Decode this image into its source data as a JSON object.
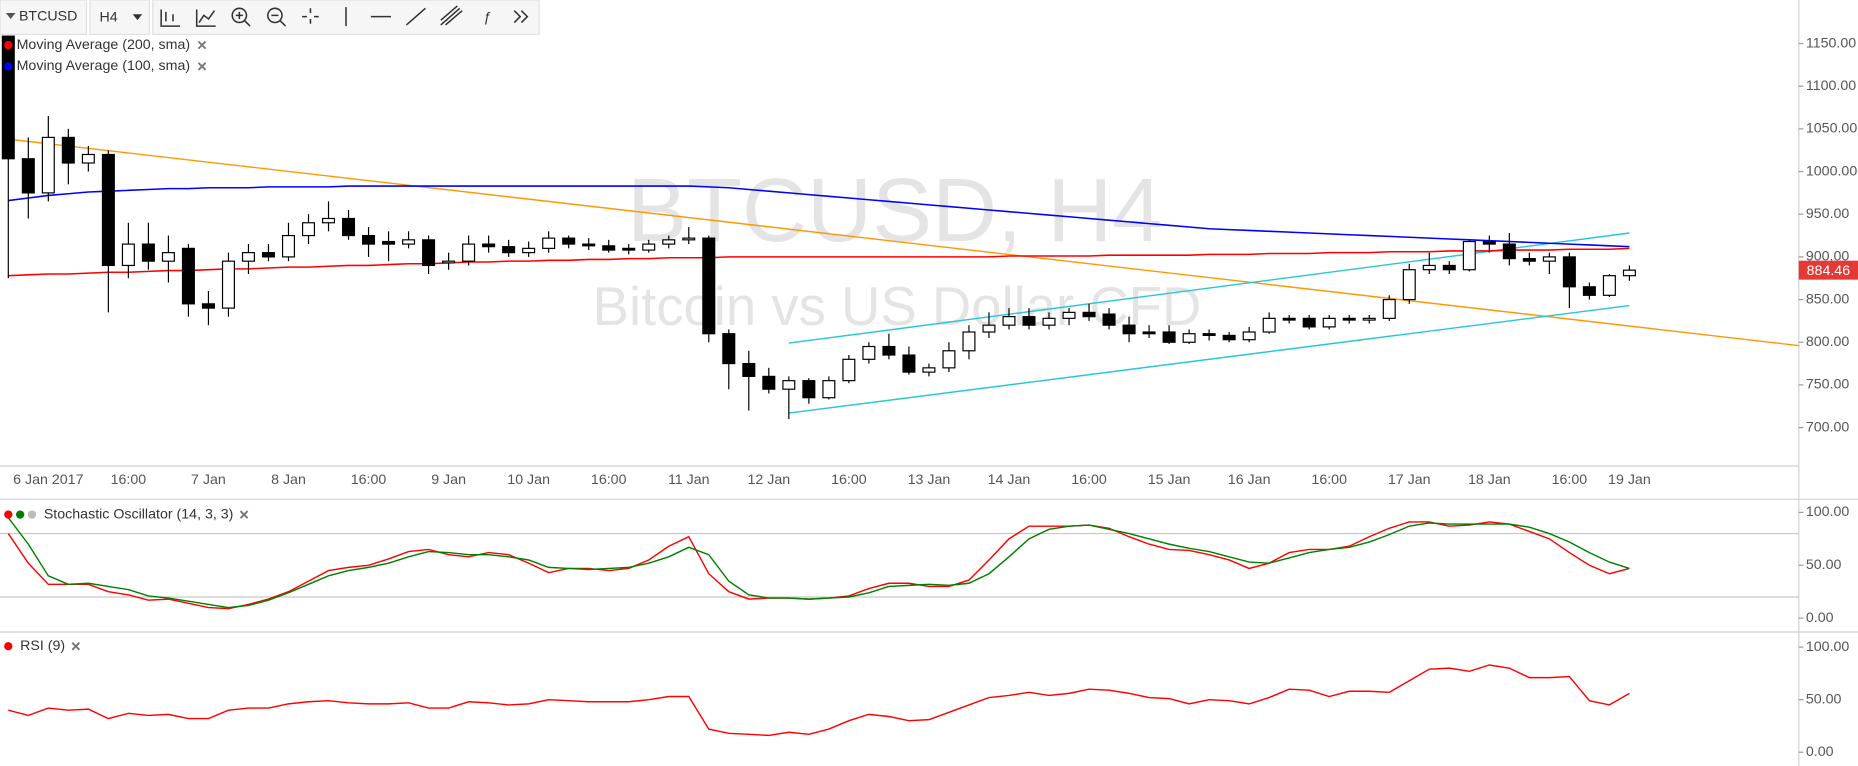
{
  "toolbar": {
    "symbol": "BTCUSD",
    "interval": "H4"
  },
  "watermark": {
    "title": "BTCUSD, H4",
    "subtitle": "Bitcoin vs US Dollar CFD"
  },
  "chart_data": [
    {
      "type": "candlestick",
      "categories": [
        null,
        null,
        "6 Jan 2017",
        null,
        null,
        null,
        "16:00",
        null,
        null,
        null,
        "7 Jan",
        null,
        null,
        null,
        "8 Jan",
        null,
        null,
        null,
        "16:00",
        null,
        null,
        null,
        "9 Jan",
        null,
        null,
        null,
        "10 Jan",
        null,
        null,
        null,
        "16:00",
        null,
        null,
        null,
        "11 Jan",
        null,
        null,
        null,
        "12 Jan",
        null,
        null,
        null,
        "16:00",
        null,
        null,
        null,
        "13 Jan",
        null,
        null,
        null,
        "14 Jan",
        null,
        null,
        null,
        "16:00",
        null,
        null,
        null,
        "15 Jan",
        null,
        null,
        null,
        "16 Jan",
        null,
        null,
        null,
        "16:00",
        null,
        null,
        null,
        "17 Jan",
        null,
        null,
        null,
        "18 Jan",
        null,
        null,
        null,
        "16:00",
        null,
        null,
        "19 Jan"
      ],
      "open": [
        1160,
        1015,
        975,
        1040,
        1010,
        1020,
        890,
        915,
        895,
        910,
        845,
        840,
        895,
        905,
        900,
        925,
        940,
        945,
        925,
        918,
        915,
        920,
        893,
        895,
        915,
        912,
        905,
        910,
        922,
        915,
        913,
        910,
        908,
        915,
        920,
        922,
        810,
        775,
        760,
        745,
        755,
        735,
        755,
        780,
        795,
        785,
        765,
        770,
        790,
        812,
        820,
        830,
        820,
        828,
        835,
        833,
        820,
        812,
        812,
        800,
        810,
        808,
        803,
        812,
        828,
        828,
        818,
        828,
        826,
        828,
        850,
        885,
        890,
        885,
        918,
        915,
        898,
        895,
        900,
        865,
        855,
        878
      ],
      "high": [
        1165,
        1040,
        1065,
        1050,
        1030,
        1025,
        940,
        940,
        925,
        915,
        860,
        905,
        915,
        915,
        940,
        950,
        965,
        955,
        935,
        930,
        930,
        925,
        905,
        925,
        925,
        920,
        918,
        930,
        925,
        922,
        920,
        915,
        920,
        925,
        935,
        925,
        815,
        790,
        770,
        760,
        758,
        760,
        785,
        800,
        810,
        795,
        775,
        800,
        820,
        835,
        840,
        840,
        835,
        840,
        845,
        840,
        830,
        820,
        820,
        815,
        815,
        812,
        818,
        835,
        832,
        832,
        832,
        832,
        832,
        855,
        892,
        905,
        895,
        920,
        925,
        928,
        905,
        905,
        905,
        870,
        880,
        890
      ],
      "low": [
        875,
        945,
        965,
        985,
        1000,
        835,
        875,
        885,
        870,
        830,
        820,
        830,
        880,
        895,
        895,
        915,
        930,
        920,
        900,
        895,
        910,
        880,
        885,
        890,
        905,
        900,
        900,
        905,
        910,
        908,
        905,
        903,
        905,
        910,
        915,
        800,
        745,
        720,
        740,
        710,
        728,
        733,
        752,
        775,
        780,
        762,
        760,
        765,
        780,
        805,
        815,
        815,
        815,
        820,
        825,
        815,
        800,
        805,
        798,
        798,
        802,
        800,
        800,
        810,
        822,
        815,
        815,
        822,
        822,
        825,
        845,
        880,
        880,
        883,
        905,
        890,
        890,
        880,
        840,
        850,
        853,
        872
      ],
      "close": [
        1015,
        975,
        1040,
        1010,
        1020,
        890,
        915,
        895,
        905,
        845,
        840,
        895,
        905,
        900,
        925,
        940,
        945,
        925,
        915,
        915,
        920,
        890,
        895,
        915,
        912,
        905,
        910,
        922,
        915,
        913,
        908,
        908,
        915,
        920,
        922,
        810,
        775,
        760,
        745,
        755,
        735,
        755,
        780,
        795,
        785,
        765,
        770,
        790,
        812,
        820,
        830,
        820,
        828,
        835,
        830,
        820,
        810,
        810,
        800,
        810,
        808,
        803,
        812,
        828,
        826,
        818,
        828,
        826,
        828,
        850,
        885,
        890,
        885,
        918,
        915,
        898,
        895,
        900,
        865,
        855,
        878,
        884.46
      ],
      "up_color": "#ffffff",
      "down_color": "#000000",
      "series": [
        {
          "name": "Moving Average (200, sma)",
          "color": "#ff0000",
          "values": [
            878,
            879,
            880,
            880,
            881,
            882,
            882,
            883,
            884,
            884,
            885,
            886,
            886,
            887,
            888,
            888,
            889,
            890,
            890,
            891,
            892,
            892,
            893,
            894,
            894,
            895,
            895,
            896,
            896,
            897,
            897,
            898,
            898,
            899,
            899,
            899,
            900,
            900,
            900,
            900,
            900,
            900,
            900,
            900,
            900,
            900,
            900,
            900,
            900,
            900,
            901,
            901,
            901,
            901,
            901,
            902,
            902,
            902,
            902,
            902,
            903,
            903,
            903,
            904,
            904,
            904,
            905,
            905,
            905,
            906,
            906,
            906,
            907,
            907,
            907,
            908,
            908,
            908,
            909,
            909,
            909,
            910
          ]
        },
        {
          "name": "Moving Average (100, sma)",
          "color": "#0000ff",
          "values": [
            966,
            969,
            972,
            974,
            976,
            977,
            978,
            979,
            980,
            980,
            981,
            981,
            981,
            982,
            982,
            982,
            982,
            983,
            983,
            983,
            983,
            983,
            983,
            983,
            983,
            983,
            983,
            983,
            983,
            983,
            983,
            983,
            983,
            983,
            983,
            982,
            981,
            979,
            977,
            975,
            973,
            971,
            969,
            967,
            965,
            963,
            961,
            959,
            957,
            955,
            953,
            951,
            949,
            947,
            945,
            943,
            941,
            939,
            937,
            935,
            933,
            932,
            931,
            930,
            929,
            928,
            927,
            926,
            925,
            924,
            923,
            922,
            921,
            920,
            919,
            918,
            917,
            916,
            915,
            914,
            913,
            912
          ]
        }
      ],
      "trendlines": [
        {
          "color": "#ff9800",
          "x": [
            0,
            89.5
          ],
          "values": [
            1038,
            796
          ]
        },
        {
          "color": "#26c6da",
          "x": [
            39,
            81
          ],
          "values": [
            799,
            928
          ]
        },
        {
          "color": "#26c6da",
          "x": [
            39,
            81
          ],
          "values": [
            717,
            843
          ]
        }
      ],
      "last_price_color": "#e53935",
      "ylim": [
        655,
        1201
      ],
      "yticks": [
        {
          "value": 700,
          "label": "700.00"
        },
        {
          "value": 750,
          "label": "750.00"
        },
        {
          "value": 800,
          "label": "800.00"
        },
        {
          "value": 850,
          "label": "850.00"
        },
        {
          "value": 900,
          "label": "900.00"
        },
        {
          "value": 950,
          "label": "950.00"
        },
        {
          "value": 1000,
          "label": "1000.00"
        },
        {
          "value": 1050,
          "label": "1050.00"
        },
        {
          "value": 1100,
          "label": "1100.00"
        },
        {
          "value": 1150,
          "label": "1150.00"
        }
      ]
    },
    {
      "type": "line",
      "title": "Stochastic Oscillator (14, 3, 3)",
      "series": [
        {
          "color": "#ff0000",
          "values": [
            80,
            52,
            32,
            32,
            32,
            25,
            22,
            17,
            18,
            14,
            10,
            9,
            13,
            18,
            25,
            35,
            45,
            48,
            50,
            56,
            63,
            65,
            60,
            58,
            62,
            60,
            52,
            43,
            47,
            47,
            45,
            47,
            55,
            68,
            77,
            42,
            25,
            18,
            19,
            19,
            18,
            19,
            21,
            28,
            33,
            33,
            30,
            30,
            36,
            55,
            75,
            87,
            87,
            87,
            88,
            85,
            77,
            70,
            65,
            64,
            60,
            55,
            47,
            52,
            62,
            65,
            65,
            68,
            77,
            85,
            91,
            91,
            87,
            88,
            91,
            89,
            82,
            75,
            62,
            50,
            42,
            47
          ]
        },
        {
          "color": "#008000",
          "values": [
            95,
            70,
            40,
            32,
            33,
            30,
            27,
            21,
            19,
            16,
            13,
            10,
            12,
            17,
            24,
            32,
            40,
            45,
            48,
            52,
            58,
            63,
            62,
            60,
            60,
            58,
            55,
            48,
            47,
            46,
            47,
            48,
            52,
            58,
            67,
            60,
            35,
            22,
            19,
            19,
            18,
            19,
            20,
            24,
            30,
            31,
            32,
            31,
            33,
            42,
            58,
            75,
            84,
            87,
            88,
            84,
            80,
            75,
            70,
            66,
            63,
            58,
            53,
            52,
            57,
            62,
            65,
            67,
            72,
            79,
            87,
            90,
            89,
            89,
            89,
            89,
            86,
            80,
            72,
            62,
            53,
            47
          ]
        }
      ],
      "levels": [
        20,
        80
      ],
      "level_color": "#c8c8c8",
      "ylim": [
        -12,
        108
      ],
      "yticks": [
        {
          "value": 0,
          "label": "0.00"
        },
        {
          "value": 50,
          "label": "50.00"
        },
        {
          "value": 100,
          "label": "100.00"
        }
      ]
    },
    {
      "type": "line",
      "title": "RSI (9)",
      "series": [
        {
          "color": "#ff0000",
          "values": [
            40,
            35,
            42,
            40,
            41,
            32,
            37,
            35,
            36,
            32,
            32,
            40,
            42,
            42,
            46,
            48,
            49,
            47,
            46,
            46,
            47,
            42,
            42,
            48,
            47,
            45,
            46,
            50,
            49,
            48,
            48,
            48,
            50,
            53,
            53,
            22,
            18,
            17,
            16,
            19,
            17,
            22,
            30,
            36,
            34,
            30,
            31,
            38,
            45,
            52,
            54,
            57,
            54,
            56,
            60,
            59,
            56,
            52,
            51,
            46,
            50,
            49,
            46,
            52,
            60,
            59,
            53,
            58,
            58,
            57,
            68,
            79,
            80,
            77,
            83,
            80,
            71,
            71,
            72,
            49,
            45,
            56
          ]
        }
      ],
      "ylim": [
        -12,
        111
      ],
      "yticks": [
        {
          "value": 0,
          "label": "0.00"
        },
        {
          "value": 50,
          "label": "50.00"
        },
        {
          "value": 100,
          "label": "100.00"
        }
      ]
    }
  ]
}
